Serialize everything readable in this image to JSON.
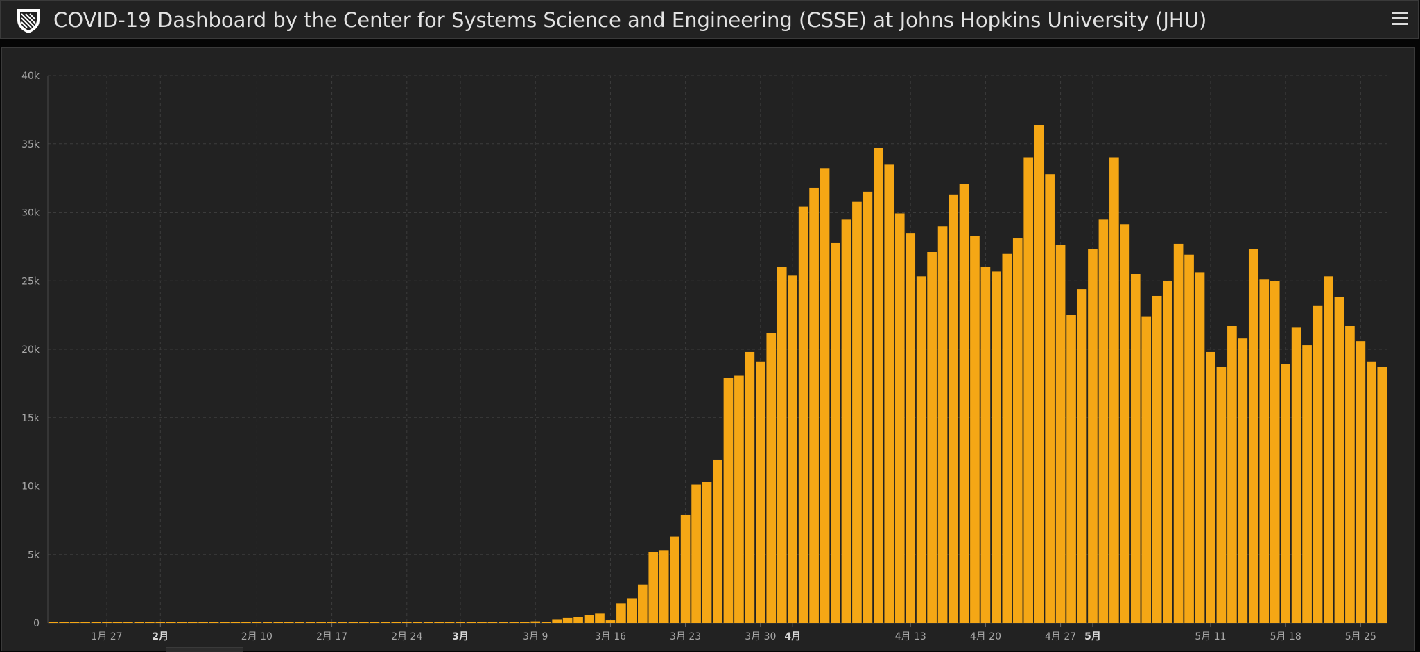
{
  "header": {
    "title": "COVID-19 Dashboard by the Center for Systems Science and Engineering (CSSE) at Johns Hopkins University (JHU)",
    "logo_icon": "jhu-shield-icon",
    "menu_icon": "hamburger-menu-icon"
  },
  "colors": {
    "bar": "#f5a715",
    "background": "#222222",
    "grid": "#3c3c3c"
  },
  "chart_data": {
    "type": "bar",
    "xlabel": "",
    "ylabel": "",
    "ylim": [
      0,
      40000
    ],
    "yticks": [
      {
        "value": 0,
        "label": "0"
      },
      {
        "value": 5000,
        "label": "5k"
      },
      {
        "value": 10000,
        "label": "10k"
      },
      {
        "value": 15000,
        "label": "15k"
      },
      {
        "value": 20000,
        "label": "20k"
      },
      {
        "value": 25000,
        "label": "25k"
      },
      {
        "value": 30000,
        "label": "30k"
      },
      {
        "value": 35000,
        "label": "35k"
      },
      {
        "value": 40000,
        "label": "40k"
      }
    ],
    "xticks": [
      {
        "index": 5,
        "label": "1月 27",
        "bold": false
      },
      {
        "index": 10,
        "label": "2月",
        "bold": true
      },
      {
        "index": 19,
        "label": "2月 10",
        "bold": false
      },
      {
        "index": 26,
        "label": "2月 17",
        "bold": false
      },
      {
        "index": 33,
        "label": "2月 24",
        "bold": false
      },
      {
        "index": 38,
        "label": "3月",
        "bold": true
      },
      {
        "index": 45,
        "label": "3月 9",
        "bold": false
      },
      {
        "index": 52,
        "label": "3月 16",
        "bold": false
      },
      {
        "index": 59,
        "label": "3月 23",
        "bold": false
      },
      {
        "index": 66,
        "label": "3月 30",
        "bold": false
      },
      {
        "index": 69,
        "label": "4月",
        "bold": true
      },
      {
        "index": 80,
        "label": "4月 13",
        "bold": false
      },
      {
        "index": 87,
        "label": "4月 20",
        "bold": false
      },
      {
        "index": 94,
        "label": "4月 27",
        "bold": false
      },
      {
        "index": 97,
        "label": "5月",
        "bold": true
      },
      {
        "index": 108,
        "label": "5月 11",
        "bold": false
      },
      {
        "index": 115,
        "label": "5月 18",
        "bold": false
      },
      {
        "index": 122,
        "label": "5月 25",
        "bold": false
      }
    ],
    "values": [
      0,
      0,
      0,
      0,
      0,
      0,
      0,
      0,
      0,
      0,
      0,
      0,
      0,
      0,
      0,
      0,
      0,
      0,
      0,
      0,
      0,
      0,
      0,
      0,
      0,
      0,
      0,
      0,
      0,
      0,
      0,
      0,
      0,
      0,
      0,
      0,
      10,
      10,
      20,
      20,
      25,
      40,
      50,
      70,
      100,
      120,
      80,
      230,
      360,
      450,
      600,
      690,
      200,
      1400,
      1800,
      2800,
      5200,
      5300,
      6300,
      7900,
      10100,
      10300,
      11900,
      17900,
      18100,
      19800,
      19100,
      21200,
      26000,
      25400,
      30400,
      31800,
      33200,
      27800,
      29500,
      30800,
      31500,
      34700,
      33500,
      29900,
      28500,
      25300,
      27100,
      29000,
      31300,
      32100,
      28300,
      26000,
      25700,
      27000,
      28100,
      34000,
      36400,
      32800,
      27600,
      22500,
      24400,
      27300,
      29500,
      34000,
      29100,
      25500,
      22400,
      23900,
      25000,
      27700,
      26900,
      25600,
      19800,
      18700,
      21700,
      20800,
      27300,
      25100,
      25000,
      18900,
      21600,
      20300,
      23200,
      25300,
      23800,
      21700,
      20600,
      19100,
      18700
    ]
  }
}
